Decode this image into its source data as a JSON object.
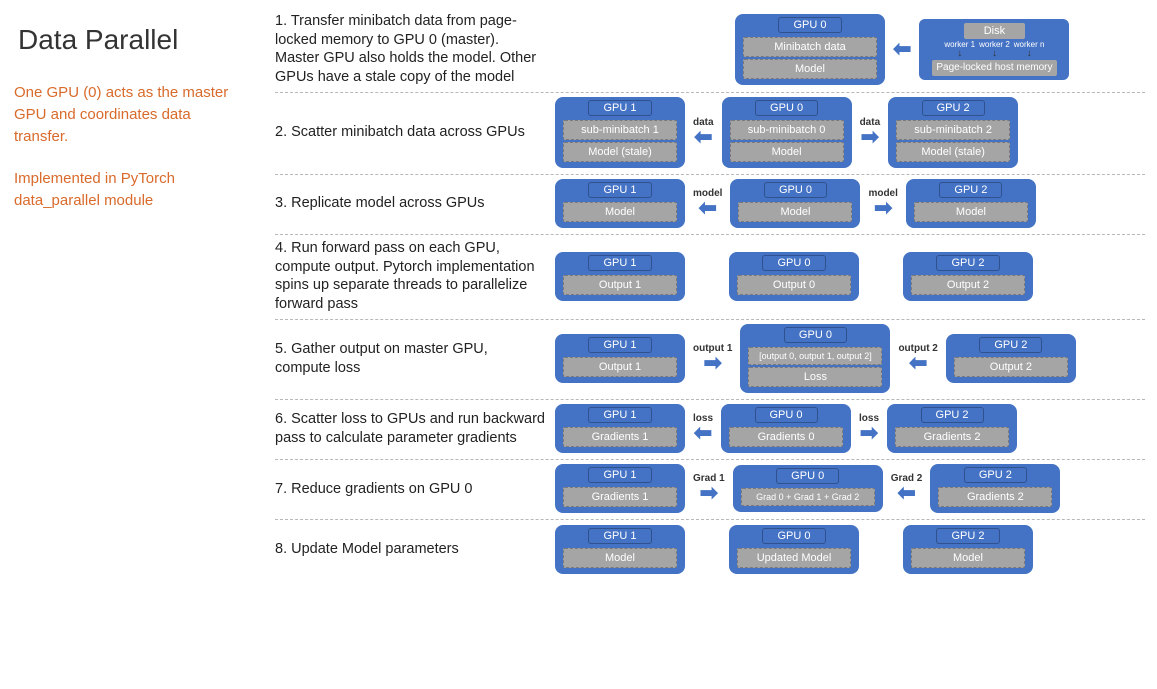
{
  "title": "Data Parallel",
  "subtitle1": "One GPU (0) acts as the master GPU and coordinates data transfer.",
  "subtitle2": "Implemented in PyTorch data_parallel module",
  "colors": {
    "box_bg": "#4472c4",
    "inner_bg": "#a5a5a5",
    "accent_text": "#d96a2b",
    "body_text": "#333333"
  },
  "steps": [
    {
      "desc": "1. Transfer minibatch data from page-locked memory  to GPU 0 (master). Master GPU also holds the model. Other GPUs have a stale copy of the model",
      "gpu0": {
        "label": "GPU 0",
        "items": [
          "Minibatch data",
          "Model"
        ]
      },
      "disk": {
        "label": "Disk",
        "workers": [
          "worker 1",
          "worker 2",
          "worker n"
        ],
        "mem": "Page-locked host memory"
      },
      "arrow_left_of_disk": "←"
    },
    {
      "desc": "2. Scatter minibatch data across GPUs",
      "gpu1": {
        "label": "GPU 1",
        "items": [
          "sub-minibatch 1",
          "Model (stale)"
        ]
      },
      "arrow1": {
        "label": "data",
        "dir": "←"
      },
      "gpu0": {
        "label": "GPU 0",
        "items": [
          "sub-minibatch 0",
          "Model"
        ]
      },
      "arrow2": {
        "label": "data",
        "dir": "→"
      },
      "gpu2": {
        "label": "GPU 2",
        "items": [
          "sub-minibatch 2",
          "Model (stale)"
        ]
      }
    },
    {
      "desc": "3. Replicate model across GPUs",
      "gpu1": {
        "label": "GPU 1",
        "items": [
          "Model"
        ]
      },
      "arrow1": {
        "label": "model",
        "dir": "←"
      },
      "gpu0": {
        "label": "GPU 0",
        "items": [
          "Model"
        ]
      },
      "arrow2": {
        "label": "model",
        "dir": "→"
      },
      "gpu2": {
        "label": "GPU 2",
        "items": [
          "Model"
        ]
      }
    },
    {
      "desc": "4. Run forward pass on each GPU, compute output. Pytorch implementation spins up separate threads to parallelize forward pass",
      "gpu1": {
        "label": "GPU 1",
        "items": [
          "Output 1"
        ]
      },
      "gpu0": {
        "label": "GPU 0",
        "items": [
          "Output 0"
        ]
      },
      "gpu2": {
        "label": "GPU 2",
        "items": [
          "Output 2"
        ]
      }
    },
    {
      "desc": "5. Gather output on master GPU, compute loss",
      "gpu1": {
        "label": "GPU 1",
        "items": [
          "Output 1"
        ]
      },
      "arrow1": {
        "label": "output 1",
        "dir": "→"
      },
      "gpu0": {
        "label": "GPU 0",
        "items_small": [
          "[output 0, output 1, output 2]"
        ],
        "items": [
          "Loss"
        ]
      },
      "arrow2": {
        "label": "output 2",
        "dir": "←"
      },
      "gpu2": {
        "label": "GPU 2",
        "items": [
          "Output  2"
        ]
      }
    },
    {
      "desc": "6. Scatter loss to GPUs and run backward pass to calculate parameter gradients",
      "gpu1": {
        "label": "GPU 1",
        "items": [
          "Gradients 1"
        ]
      },
      "arrow1": {
        "label": "loss",
        "dir": "←"
      },
      "gpu0": {
        "label": "GPU 0",
        "items": [
          "Gradients 0"
        ]
      },
      "arrow2": {
        "label": "loss",
        "dir": "→"
      },
      "gpu2": {
        "label": "GPU 2",
        "items": [
          "Gradients 2"
        ]
      }
    },
    {
      "desc": "7. Reduce gradients on GPU 0",
      "gpu1": {
        "label": "GPU 1",
        "items": [
          "Gradients 1"
        ]
      },
      "arrow1": {
        "label": "Grad 1",
        "dir": "→"
      },
      "gpu0": {
        "label": "GPU 0",
        "items_small": [
          "Grad 0 + Grad 1 + Grad 2"
        ]
      },
      "arrow2": {
        "label": "Grad 2",
        "dir": "←"
      },
      "gpu2": {
        "label": "GPU 2",
        "items": [
          "Gradients 2"
        ]
      }
    },
    {
      "desc": "8. Update Model parameters",
      "gpu1": {
        "label": "GPU 1",
        "items": [
          "Model"
        ]
      },
      "gpu0": {
        "label": "GPU 0",
        "items": [
          "Updated Model"
        ]
      },
      "gpu2": {
        "label": "GPU 2",
        "items": [
          "Model"
        ]
      }
    }
  ]
}
